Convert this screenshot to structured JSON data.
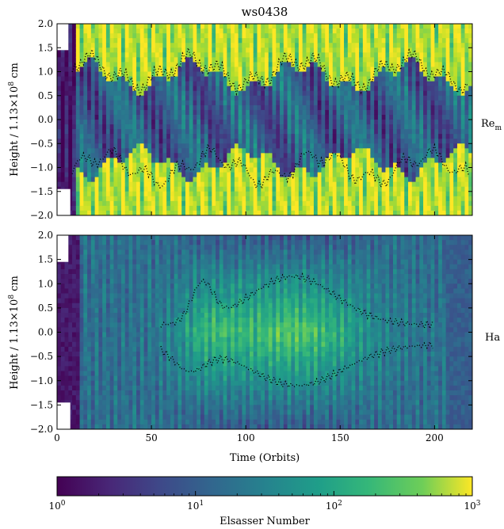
{
  "chart_data": [
    {
      "type": "heatmap",
      "title": "ws0438",
      "panel_label": "Re",
      "panel_label_sub": "m",
      "ylabel": "Height / 1.13×10",
      "ylabel_exp": "8",
      "ylabel_unit": " cm",
      "xlim": [
        0,
        220
      ],
      "ylim": [
        -2.0,
        2.0
      ],
      "yticks": [
        -2.0,
        -1.5,
        -1.0,
        -0.5,
        0.0,
        0.5,
        1.0,
        1.5,
        2.0
      ],
      "ytick_labels": [
        "−2.0",
        "−1.5",
        "−1.0",
        "−0.5",
        "0.0",
        "0.5",
        "1.0",
        "1.5",
        "2.0"
      ],
      "xticks": [
        0,
        50,
        100,
        150,
        200
      ],
      "contour": "dotted black",
      "field": {
        "value_log10_range": [
          0,
          3
        ],
        "description_bands": [
          {
            "height_range": [
              1.0,
              2.0
            ],
            "log10_value": 2.8
          },
          {
            "height_range": [
              -0.8,
              0.8
            ],
            "log10_value": 1.0
          },
          {
            "height_range": [
              -2.0,
              -1.0
            ],
            "log10_value": 2.8
          }
        ]
      }
    },
    {
      "type": "heatmap",
      "panel_label": "Ha",
      "ylabel": "Height / 1.13×10",
      "ylabel_exp": "8",
      "ylabel_unit": " cm",
      "xlabel": "Time (Orbits)",
      "xlim": [
        0,
        220
      ],
      "ylim": [
        -2.0,
        2.0
      ],
      "yticks": [
        -2.0,
        -1.5,
        -1.0,
        -0.5,
        0.0,
        0.5,
        1.0,
        1.5,
        2.0
      ],
      "ytick_labels": [
        "−2.0",
        "−1.5",
        "−1.0",
        "−0.5",
        "0.0",
        "0.5",
        "1.0",
        "1.5",
        "2.0"
      ],
      "xticks": [
        0,
        50,
        100,
        150,
        200
      ],
      "xtick_labels": [
        "0",
        "50",
        "100",
        "150",
        "200"
      ],
      "contour": "dotted black"
    }
  ],
  "colorbar": {
    "label": "Elsasser Number",
    "colormap": "viridis",
    "scale": "log",
    "range": [
      1,
      1000
    ],
    "tick_base": "10",
    "tick_exps": [
      "0",
      "1",
      "2",
      "3"
    ]
  }
}
